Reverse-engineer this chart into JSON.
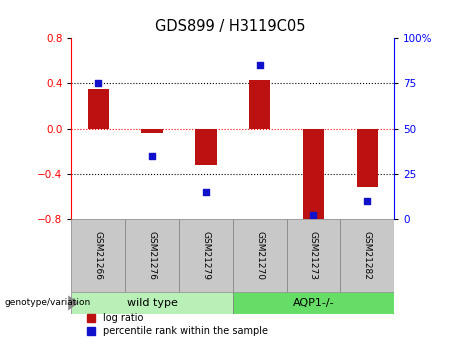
{
  "title": "GDS899 / H3119C05",
  "samples": [
    "GSM21266",
    "GSM21276",
    "GSM21279",
    "GSM21270",
    "GSM21273",
    "GSM21282"
  ],
  "log_ratio": [
    0.35,
    -0.04,
    -0.32,
    0.43,
    -0.8,
    -0.52
  ],
  "percentile_rank": [
    75,
    35,
    15,
    85,
    2,
    10
  ],
  "groups": [
    {
      "label": "wild type",
      "indices": [
        0,
        1,
        2
      ],
      "color": "#b8f0b8"
    },
    {
      "label": "AQP1-/-",
      "indices": [
        3,
        4,
        5
      ],
      "color": "#66dd66"
    }
  ],
  "bar_color": "#bb1111",
  "dot_color": "#1111cc",
  "ylim_left": [
    -0.8,
    0.8
  ],
  "ylim_right": [
    0,
    100
  ],
  "yticks_left": [
    -0.8,
    -0.4,
    0.0,
    0.4,
    0.8
  ],
  "yticks_right": [
    0,
    25,
    50,
    75,
    100
  ],
  "hlines": [
    0.4,
    0.0,
    -0.4
  ],
  "hline_styles": [
    "dotted",
    "dotted",
    "dotted"
  ],
  "hline_colors": [
    "black",
    "red",
    "black"
  ],
  "legend_labels": [
    "log ratio",
    "percentile rank within the sample"
  ]
}
